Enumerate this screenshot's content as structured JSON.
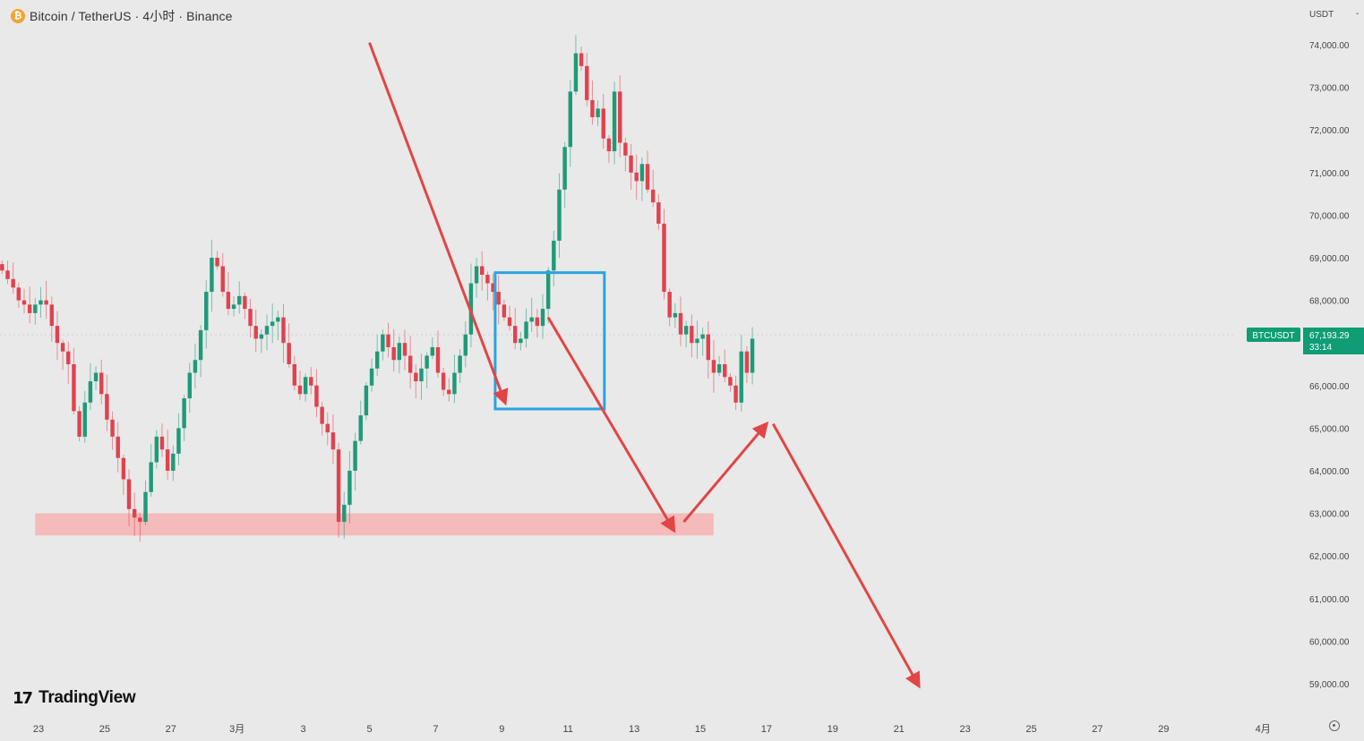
{
  "header": {
    "coin_icon": "bitcoin-icon",
    "coin_glyph": "₿",
    "title": "Bitcoin / TetherUS · 4小时 · Binance"
  },
  "price_axis": {
    "currency": "USDT",
    "currency_caret": "-"
  },
  "price_tag": {
    "symbol": "BTCUSDT",
    "price": "67,193.29",
    "countdown": "33:14",
    "color": "#0f9d75"
  },
  "watermark": {
    "logo": "17",
    "text": "TradingView"
  },
  "colors": {
    "up": "#1f9a78",
    "down": "#e0424e",
    "arrow": "#e24545",
    "box": "#2aa4e0",
    "zone": "#f6b5b5"
  },
  "chart_data": {
    "type": "candlestick",
    "title": "Bitcoin / TetherUS · 4小时 · Binance",
    "y_unit": "USDT",
    "ylim": [
      58500,
      74800
    ],
    "y_ticks": [
      "74,000.00",
      "73,000.00",
      "72,000.00",
      "71,000.00",
      "70,000.00",
      "69,000.00",
      "68,000.00",
      "67,000.00",
      "66,000.00",
      "65,000.00",
      "64,000.00",
      "63,000.00",
      "62,000.00",
      "61,000.00",
      "60,000.00",
      "59,000.00"
    ],
    "y_tick_values": [
      74000,
      73000,
      72000,
      71000,
      70000,
      69000,
      68000,
      67000,
      66000,
      65000,
      64000,
      63000,
      62000,
      61000,
      60000,
      59000
    ],
    "x_ticks": [
      {
        "label": "23",
        "day": 0
      },
      {
        "label": "25",
        "day": 2
      },
      {
        "label": "27",
        "day": 4
      },
      {
        "label": "3月",
        "day": 6
      },
      {
        "label": "3",
        "day": 8
      },
      {
        "label": "5",
        "day": 10
      },
      {
        "label": "7",
        "day": 12
      },
      {
        "label": "9",
        "day": 14
      },
      {
        "label": "11",
        "day": 16
      },
      {
        "label": "13",
        "day": 18
      },
      {
        "label": "15",
        "day": 20
      },
      {
        "label": "17",
        "day": 22
      },
      {
        "label": "19",
        "day": 24
      },
      {
        "label": "21",
        "day": 26
      },
      {
        "label": "23",
        "day": 28
      },
      {
        "label": "25",
        "day": 30
      },
      {
        "label": "27",
        "day": 32
      },
      {
        "label": "29",
        "day": 34
      },
      {
        "label": "4月",
        "day": 37
      }
    ],
    "x_start_day": -1.1,
    "candle_step_days": 0.1667,
    "closes": [
      68700,
      68500,
      68300,
      68000,
      67900,
      67700,
      67900,
      68000,
      67900,
      67400,
      67000,
      66800,
      66500,
      65400,
      64800,
      65600,
      66100,
      66300,
      65800,
      65200,
      64800,
      64300,
      63800,
      63100,
      62900,
      62800,
      63500,
      64200,
      64800,
      64500,
      64000,
      64400,
      65000,
      65700,
      66300,
      66600,
      67300,
      68200,
      69000,
      68800,
      68200,
      67800,
      67900,
      68100,
      67800,
      67400,
      67100,
      67200,
      67400,
      67500,
      67600,
      67000,
      66500,
      66000,
      65800,
      66200,
      66000,
      65500,
      65100,
      64900,
      64500,
      62800,
      63200,
      64000,
      64700,
      65300,
      66000,
      66400,
      66800,
      67200,
      66900,
      66600,
      67000,
      66700,
      66300,
      66100,
      66400,
      66700,
      66900,
      66300,
      65900,
      65800,
      66300,
      66700,
      67200,
      68400,
      68800,
      68600,
      68400,
      68200,
      67900,
      67600,
      67400,
      67000,
      67100,
      67500,
      67600,
      67400,
      67800,
      68700,
      69400,
      70600,
      71600,
      72900,
      73800,
      73500,
      72700,
      72300,
      72500,
      71800,
      71500,
      72900,
      71700,
      71400,
      71000,
      70800,
      71200,
      70600,
      70300,
      69800,
      68200,
      67600,
      67700,
      67200,
      67400,
      67000,
      67100,
      67200,
      66600,
      66300,
      66500,
      66200,
      66000,
      65600,
      66800,
      66300,
      67100
    ],
    "last_open": 66300,
    "current_price": 67193.29,
    "annotations": [
      {
        "type": "rect",
        "label": "blue-box",
        "day_range": [
          13.8,
          17.1
        ],
        "price_range": [
          65450,
          68650
        ]
      },
      {
        "type": "zone",
        "label": "support-zone",
        "day_range": [
          -0.1,
          20.4
        ],
        "price_range": [
          62480,
          63000
        ]
      },
      {
        "type": "arrow",
        "from": {
          "day": 10.0,
          "price": 74050
        },
        "to": {
          "day": 14.1,
          "price": 65600
        }
      },
      {
        "type": "arrow",
        "from": {
          "day": 15.4,
          "price": 67600
        },
        "to": {
          "day": 19.2,
          "price": 62600
        }
      },
      {
        "type": "arrow",
        "from": {
          "day": 19.5,
          "price": 62800
        },
        "to": {
          "day": 22.0,
          "price": 65100
        }
      },
      {
        "type": "arrow",
        "from": {
          "day": 22.2,
          "price": 65100
        },
        "to": {
          "day": 26.6,
          "price": 58950
        }
      }
    ]
  }
}
